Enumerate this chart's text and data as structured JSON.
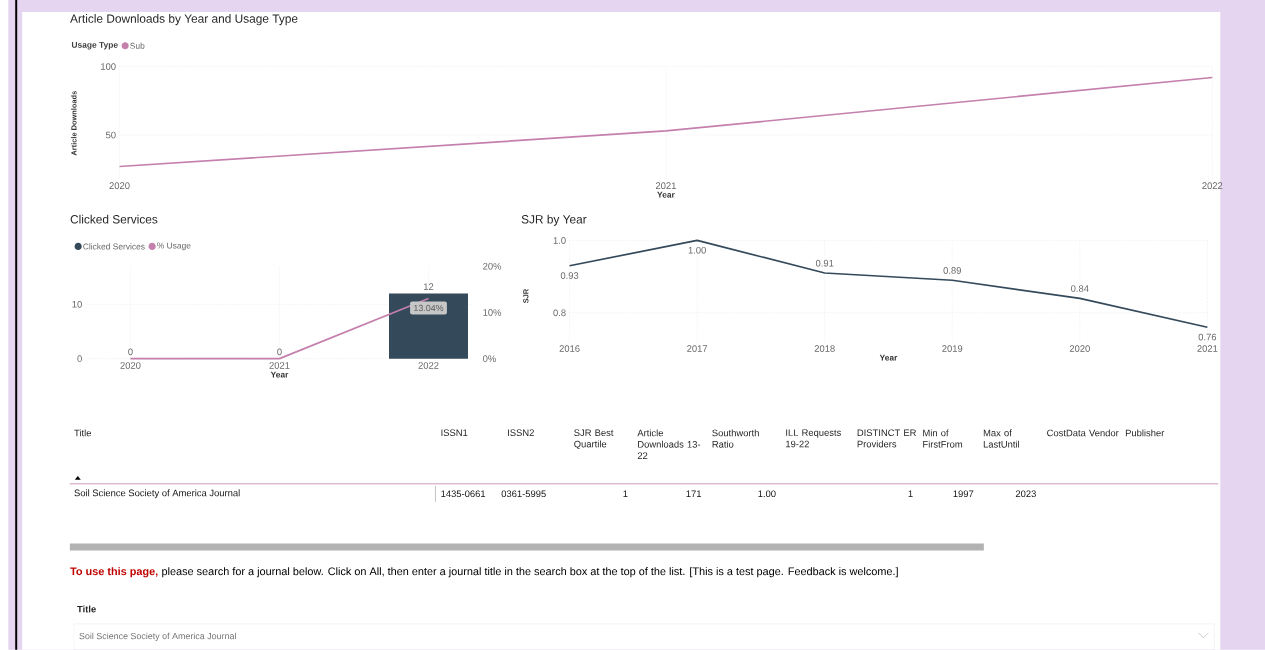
{
  "chart_data": [
    {
      "type": "line",
      "title": "Article Downloads by Year and Usage Type",
      "legend_title": "Usage Type",
      "legend": "top left",
      "xlabel": "Year",
      "ylabel": "Article Downloads",
      "categories": [
        "2020",
        "2021",
        "2022"
      ],
      "series": [
        {
          "name": "Sub",
          "color": "#c47fad",
          "values": [
            27,
            53,
            92
          ]
        }
      ],
      "ylim": [
        18,
        100
      ],
      "yticks": [
        50,
        100
      ],
      "grid": true
    },
    {
      "type": "bar",
      "title": "Clicked Services",
      "legend": "top left",
      "xlabel": "Year",
      "categories": [
        "2020",
        "2021",
        "2022"
      ],
      "series": [
        {
          "name": "Clicked Services",
          "color": "#34495a",
          "values": [
            0,
            0,
            12
          ],
          "value_labels": [
            "0",
            "0",
            "12"
          ]
        },
        {
          "name": "% Usage",
          "type": "line",
          "axis": "y2",
          "color": "#c47fad",
          "values": [
            0,
            0,
            13.04
          ],
          "value_labels": [
            null,
            null,
            "13.04%"
          ]
        }
      ],
      "ylim": [
        0,
        17
      ],
      "yticks": [
        0,
        10
      ],
      "y2lim": [
        0,
        20
      ],
      "y2ticks": [
        {
          "value": 0,
          "label": "0%"
        },
        {
          "value": 10,
          "label": "10%"
        },
        {
          "value": 20,
          "label": "20%"
        }
      ],
      "grid": true
    },
    {
      "type": "line",
      "title": "SJR by Year",
      "xlabel": "Year",
      "ylabel": "SJR",
      "categories": [
        "2016",
        "2017",
        "2018",
        "2019",
        "2020",
        "2021"
      ],
      "series": [
        {
          "color": "#34495a",
          "values": [
            0.93,
            1.0,
            0.91,
            0.89,
            0.84,
            0.76
          ],
          "value_labels": [
            "0.93",
            "1.00",
            "0.91",
            "0.89",
            "0.84",
            "0.76"
          ]
        }
      ],
      "ylim": [
        0.72,
        1.0
      ],
      "yticks": [
        0.8,
        {
          "value": 1.0,
          "label": "1.0"
        }
      ],
      "grid": true
    },
    {
      "type": "other",
      "annotations": [
        "Title",
        "ISSN1",
        "ISSN2",
        "SJR Best Quartile",
        "Article Downloads 13-22",
        "Southworth Ratio",
        "ILL Requests 19-22",
        "DISTINCT ER Providers",
        "Min of FirstFrom",
        "Max of LastUntil",
        "CostData Vendor",
        "Publisher",
        "Soil Science Society of America Journal",
        "1435-0661",
        "0361-5995",
        "1",
        "171",
        "1.00",
        "1",
        "1997",
        "2023",
        "To use this page,",
        "please search for a journal below. Click on All, then enter a journal title in the search box at the top of the list. [This is a test page. Feedback is welcome.]",
        "Title",
        "Soil Science Society of America Journal"
      ]
    }
  ]
}
